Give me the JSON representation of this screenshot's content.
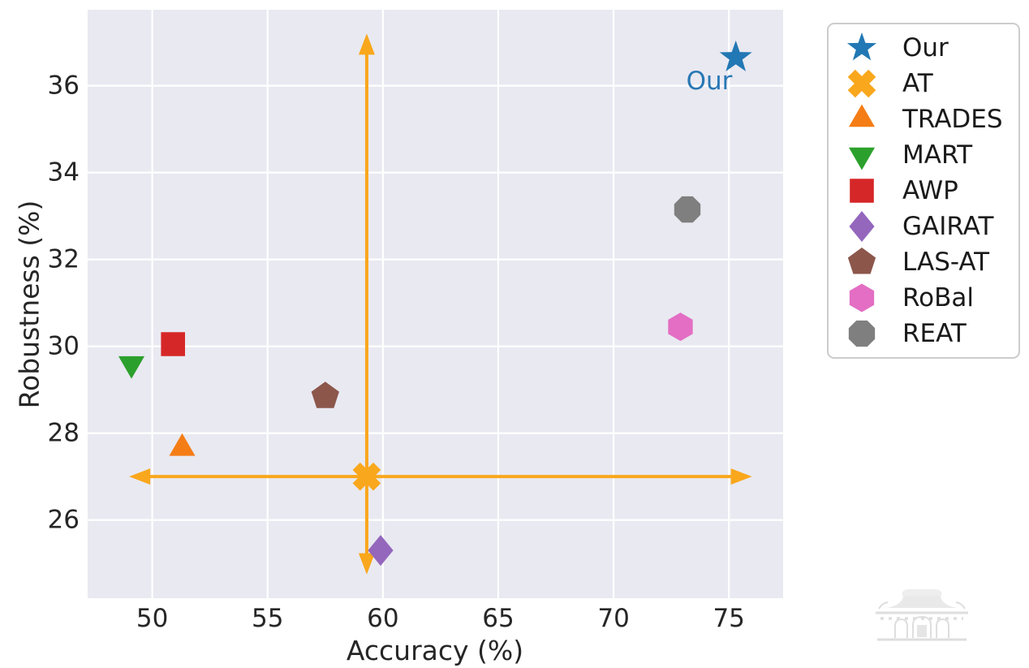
{
  "figure": {
    "plot_bg": "#E9E9F1",
    "grid_color": "#FFFFFF",
    "tick_color": "#262626",
    "watermark_icon": "temple-gate"
  },
  "chart_data": {
    "type": "scatter",
    "title": "",
    "xlabel": "Accuracy (%)",
    "ylabel": "Robustness (%)",
    "xlim": [
      47.2,
      77.35
    ],
    "ylim": [
      24.2,
      37.75
    ],
    "xticks": [
      50,
      55,
      60,
      65,
      70,
      75
    ],
    "yticks": [
      26,
      28,
      30,
      32,
      34,
      36
    ],
    "grid": true,
    "legend_position": "outside upper right",
    "series": [
      {
        "name": "Our",
        "marker": "star",
        "color": "#2278B4",
        "size": 42,
        "points": [
          [
            75.3,
            36.65
          ]
        ]
      },
      {
        "name": "AT",
        "marker": "x-filled",
        "color": "#F9A71C",
        "size": 36,
        "points": [
          [
            59.3,
            27.0
          ]
        ]
      },
      {
        "name": "TRADES",
        "marker": "triangle-up",
        "color": "#F57D15",
        "size": 37,
        "points": [
          [
            51.3,
            27.65
          ]
        ]
      },
      {
        "name": "MART",
        "marker": "triangle-down",
        "color": "#2CA02C",
        "size": 37,
        "points": [
          [
            49.1,
            29.6
          ]
        ]
      },
      {
        "name": "AWP",
        "marker": "square",
        "color": "#D62728",
        "size": 37,
        "points": [
          [
            50.9,
            30.05
          ]
        ]
      },
      {
        "name": "GAIRAT",
        "marker": "diamond",
        "color": "#9467BD",
        "size": 38,
        "points": [
          [
            59.9,
            25.3
          ]
        ]
      },
      {
        "name": "LAS-AT",
        "marker": "pentagon",
        "color": "#8C564B",
        "size": 36,
        "points": [
          [
            57.5,
            28.85
          ]
        ]
      },
      {
        "name": "RoBal",
        "marker": "hexagon",
        "color": "#E36EC3",
        "size": 35,
        "points": [
          [
            72.9,
            30.45
          ]
        ]
      },
      {
        "name": "REAT",
        "marker": "octagon",
        "color": "#7F7F7F",
        "size": 35,
        "points": [
          [
            73.2,
            33.15
          ]
        ]
      }
    ],
    "annotation": {
      "text": "Our",
      "x": 74.15,
      "y": 36.1,
      "color": "#2878B4"
    },
    "crosshair": {
      "color": "#F9A71C",
      "center": [
        59.3,
        27.0
      ],
      "x_range": [
        49.0,
        76.0
      ],
      "y_range": [
        24.75,
        37.2
      ]
    }
  }
}
